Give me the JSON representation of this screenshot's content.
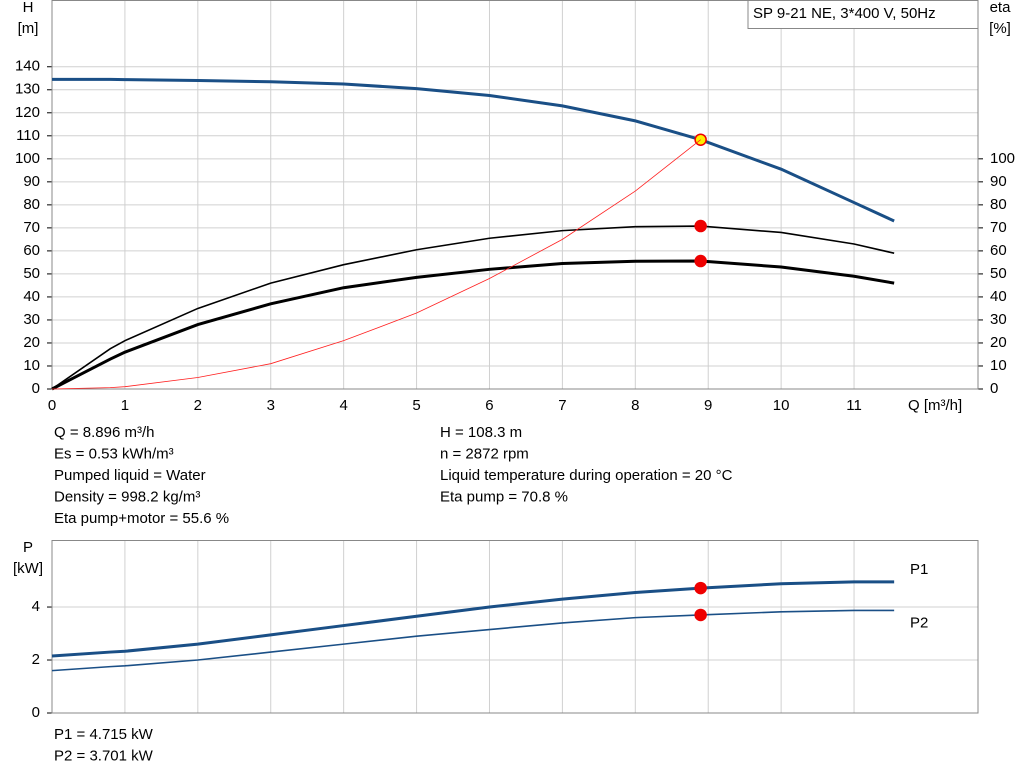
{
  "chart_data": [
    {
      "type": "line",
      "title": "SP 9-21 NE, 3*400 V, 50Hz",
      "xlabel": "Q [m³/h]",
      "ylabel": [
        "H",
        "[m]"
      ],
      "y2label": [
        "eta",
        "[%]"
      ],
      "x": [
        0,
        0.8,
        1,
        2,
        3,
        4,
        5,
        6,
        7,
        8,
        8.896,
        10,
        11,
        11.55
      ],
      "operating_x": 8.896,
      "series": [
        {
          "color": "#1a4f86",
          "width": 3,
          "marker_color": "#ffee00",
          "values": [
            134.5,
            134.5,
            134.4,
            134,
            133.5,
            132.5,
            130.5,
            127.5,
            123,
            116.5,
            108.3,
            95.5,
            81,
            73
          ]
        },
        {
          "color": "#000000",
          "width": 1.6,
          "axis": "y2",
          "marker_color": "#ee0000",
          "values": [
            0,
            17.5,
            21,
            35,
            46,
            54,
            60.5,
            65.5,
            68.8,
            70.5,
            70.8,
            68,
            63,
            59
          ]
        },
        {
          "color": "#000000",
          "width": 3,
          "axis": "y2",
          "marker_color": "#ee0000",
          "values": [
            0,
            13,
            16,
            28,
            37,
            44,
            48.5,
            52,
            54.5,
            55.5,
            55.6,
            53,
            49,
            46
          ]
        },
        {
          "color": "#ff2020",
          "width": 0.8,
          "values": [
            0,
            0.6,
            1,
            5,
            11,
            21,
            33,
            48,
            65,
            86,
            108.3,
            null,
            null,
            null
          ]
        }
      ],
      "xlim": [
        0,
        12.7
      ],
      "xticks": [
        0,
        1,
        2,
        3,
        4,
        5,
        6,
        7,
        8,
        9,
        10,
        11
      ],
      "show_xtick_labels": true,
      "ylim": [
        0,
        169
      ],
      "yticks": [
        0,
        10,
        20,
        30,
        40,
        50,
        60,
        70,
        80,
        90,
        100,
        110,
        120,
        130,
        140
      ],
      "y2lim": [
        0,
        169
      ],
      "y2ticks": [
        0,
        10,
        20,
        30,
        40,
        50,
        60,
        70,
        80,
        90,
        100
      ],
      "grid": true,
      "notes": [
        [
          "Q = 8.896 m³/h",
          "Es = 0.53 kWh/m³",
          "Pumped liquid = Water",
          "Density = 998.2 kg/m³",
          "Eta pump+motor = 55.6 %"
        ],
        [
          "H = 108.3 m",
          "n = 2872 rpm",
          "Liquid temperature during operation = 20 °C",
          "Eta pump = 70.8 %"
        ]
      ]
    },
    {
      "type": "line",
      "ylabel": [
        "P",
        "[kW]"
      ],
      "x": [
        0,
        0.8,
        1,
        2,
        3,
        4,
        5,
        6,
        7,
        8,
        8.896,
        10,
        11,
        11.55
      ],
      "operating_x": 8.896,
      "series": [
        {
          "name": "P1",
          "color": "#1a4f86",
          "width": 3,
          "marker_color": "#ee0000",
          "values": [
            2.15,
            2.3,
            2.33,
            2.6,
            2.95,
            3.3,
            3.65,
            4.0,
            4.3,
            4.55,
            4.715,
            4.88,
            4.95,
            4.95
          ]
        },
        {
          "name": "P2",
          "color": "#1a4f86",
          "width": 1.6,
          "marker_color": "#ee0000",
          "values": [
            1.6,
            1.75,
            1.78,
            2.0,
            2.3,
            2.6,
            2.9,
            3.15,
            3.4,
            3.6,
            3.701,
            3.82,
            3.87,
            3.87
          ]
        }
      ],
      "xlim": [
        0,
        12.7
      ],
      "xticks": [
        0,
        1,
        2,
        3,
        4,
        5,
        6,
        7,
        8,
        9,
        10,
        11
      ],
      "show_xtick_labels": false,
      "ylim": [
        0,
        6.53
      ],
      "yticks": [
        0,
        2,
        4
      ],
      "grid": true,
      "notes": [
        [
          "P1 = 4.715 kW",
          "P2 = 3.701 kW"
        ]
      ]
    }
  ]
}
